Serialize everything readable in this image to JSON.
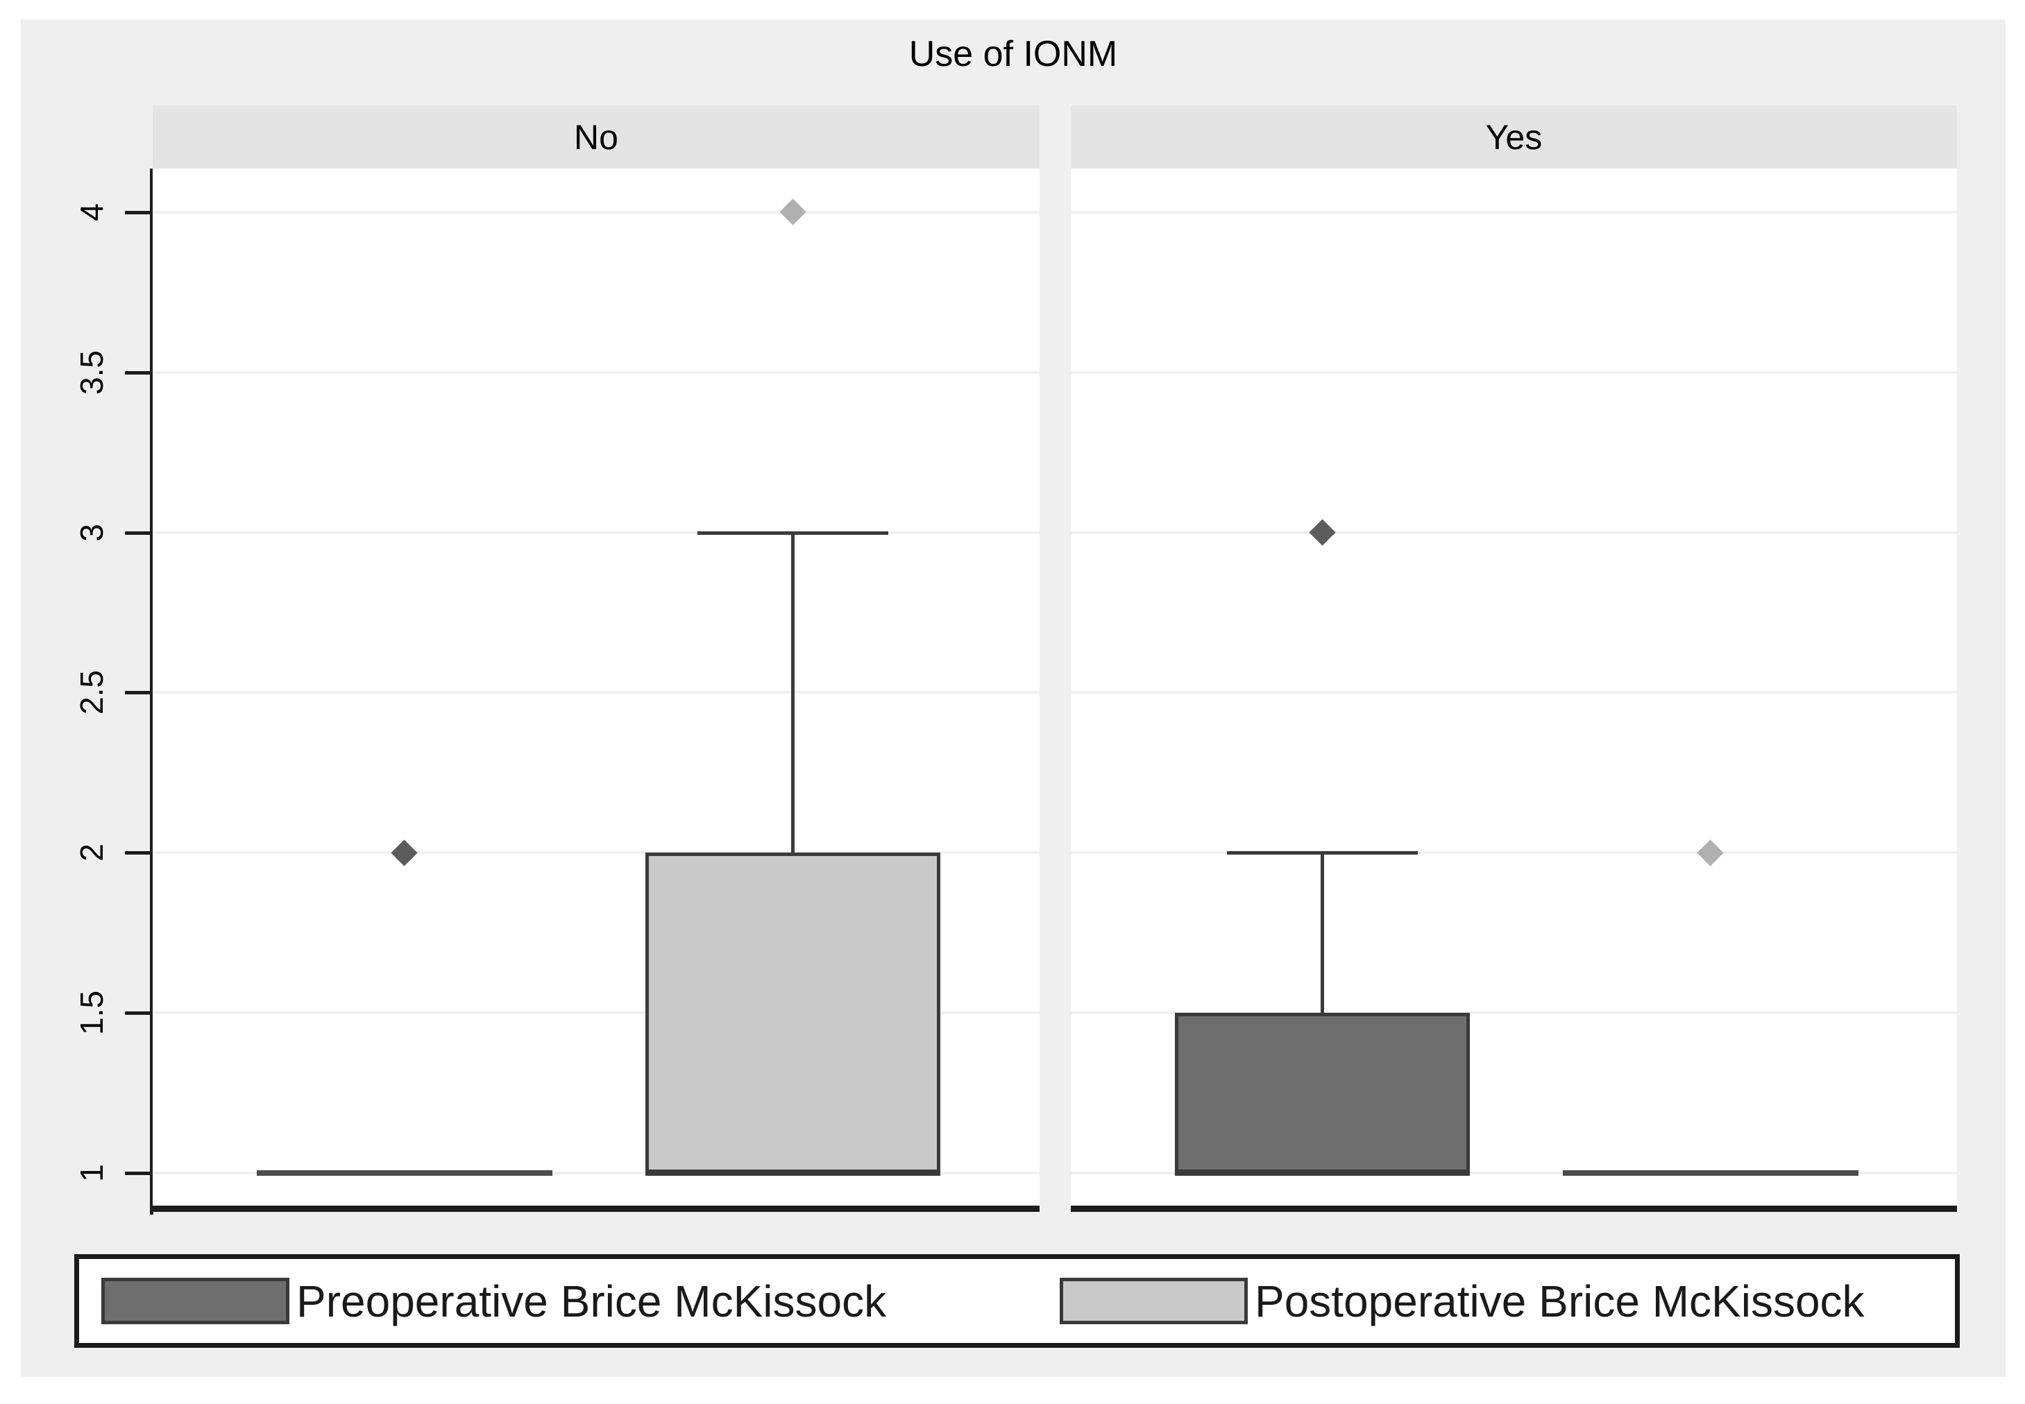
{
  "title": "Use of IONM",
  "colors": {
    "figure_bg": "#efefef",
    "panel_band": "#e4e4e4",
    "plot_bg": "#ffffff",
    "gridline": "#f0f0f0",
    "axis": "#1c1c1c",
    "box_border": "#3a3a3a",
    "preop_fill": "#6e6e6e",
    "postop_fill": "#c9c9c9",
    "collapsed_line": "#4c4c4c",
    "preop_outlier": "#5c5c5c",
    "postop_outlier": "#b0b0b0",
    "legend_border": "#1a1a1a",
    "text": "#000000"
  },
  "chart_data": {
    "type": "boxplot",
    "title": "Use of IONM",
    "facet_variable": "Use of IONM",
    "grid": true,
    "y_axis": {
      "ticks": [
        1,
        1.5,
        2,
        2.5,
        3,
        3.5,
        4
      ],
      "tick_labels": [
        "1",
        "1.5",
        "2",
        "2.5",
        "3",
        "3.5",
        "4"
      ],
      "range": [
        0.89,
        4.13
      ],
      "tick_label_rotation_deg": 90
    },
    "panels": [
      {
        "label": "No",
        "groups": [
          {
            "series": "Preoperative Brice McKissock",
            "min": 1,
            "q1": 1,
            "median": 1,
            "q3": 1,
            "max": 1,
            "outliers": [
              2
            ]
          },
          {
            "series": "Postoperative Brice McKissock",
            "min": 1,
            "q1": 1,
            "median": 1,
            "q3": 2,
            "max": 3,
            "outliers": [
              4
            ]
          }
        ]
      },
      {
        "label": "Yes",
        "groups": [
          {
            "series": "Preoperative Brice McKissock",
            "min": 1,
            "q1": 1,
            "median": 1,
            "q3": 1.5,
            "max": 2,
            "outliers": [
              3
            ]
          },
          {
            "series": "Postoperative Brice McKissock",
            "min": 1,
            "q1": 1,
            "median": 1,
            "q3": 1,
            "max": 1,
            "outliers": [
              2
            ]
          }
        ]
      }
    ],
    "legend": {
      "position": "bottom",
      "entries": [
        {
          "label": "Preoperative Brice McKissock",
          "color": "#6e6e6e"
        },
        {
          "label": "Postoperative Brice McKissock",
          "color": "#c9c9c9"
        }
      ]
    }
  }
}
